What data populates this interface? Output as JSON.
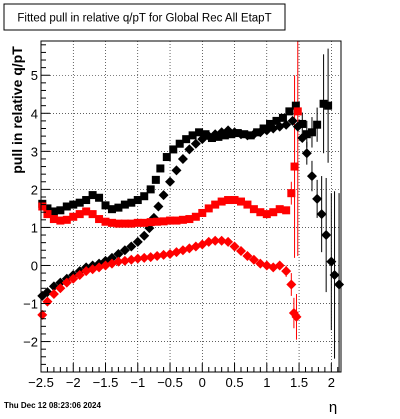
{
  "chart_data": {
    "type": "scatter",
    "title": "Fitted pull in relative q/pT for Global Rec All EtapT",
    "xlabel": "η",
    "ylabel": "pull in relative q/pT",
    "xlim": [
      -2.5,
      2.15
    ],
    "ylim": [
      -2.8,
      5.9
    ],
    "x_ticks": [
      -2.5,
      -2,
      -1.5,
      -1,
      -0.5,
      0,
      0.5,
      1,
      1.5,
      2
    ],
    "x_tick_labels": [
      "−2.5",
      "−2",
      "−1.5",
      "−1",
      "−0.5",
      "0",
      "0.5",
      "1",
      "1.5",
      "2"
    ],
    "y_ticks": [
      -2,
      -1,
      0,
      1,
      2,
      3,
      4,
      5
    ],
    "y_tick_labels": [
      "−2",
      "−1",
      "0",
      "1",
      "2",
      "3",
      "4",
      "5"
    ],
    "grid": true,
    "legend": "none",
    "timestamp": "Thu Dec 12 08:23:06 2024",
    "series": [
      {
        "color": "#000000",
        "marker": "square",
        "points": [
          [
            -2.48,
            1.62
          ],
          [
            -2.4,
            1.5
          ],
          [
            -2.3,
            1.42
          ],
          [
            -2.2,
            1.45
          ],
          [
            -2.1,
            1.55
          ],
          [
            -2.0,
            1.6
          ],
          [
            -1.9,
            1.65
          ],
          [
            -1.8,
            1.72
          ],
          [
            -1.7,
            1.85
          ],
          [
            -1.6,
            1.78
          ],
          [
            -1.5,
            1.58
          ],
          [
            -1.4,
            1.48
          ],
          [
            -1.3,
            1.52
          ],
          [
            -1.2,
            1.6
          ],
          [
            -1.1,
            1.65
          ],
          [
            -1.0,
            1.72
          ],
          [
            -0.9,
            1.82
          ],
          [
            -0.8,
            2.0
          ],
          [
            -0.72,
            2.25
          ],
          [
            -0.65,
            2.55
          ],
          [
            -0.55,
            2.85
          ],
          [
            -0.45,
            3.05
          ],
          [
            -0.35,
            3.2
          ],
          [
            -0.25,
            3.32
          ],
          [
            -0.15,
            3.42
          ],
          [
            -0.05,
            3.5
          ],
          [
            0.05,
            3.45
          ],
          [
            0.15,
            3.35
          ],
          [
            0.25,
            3.38
          ],
          [
            0.35,
            3.42
          ],
          [
            0.45,
            3.45
          ],
          [
            0.55,
            3.48
          ],
          [
            0.65,
            3.45
          ],
          [
            0.75,
            3.42
          ],
          [
            0.85,
            3.5
          ],
          [
            0.95,
            3.6
          ],
          [
            1.05,
            3.72
          ],
          [
            1.15,
            3.8
          ],
          [
            1.25,
            3.88
          ],
          [
            1.35,
            4.05
          ],
          [
            1.45,
            4.2
          ],
          [
            1.55,
            3.72
          ],
          [
            1.62,
            3.45
          ],
          [
            1.7,
            3.5
          ],
          [
            1.78,
            3.7
          ],
          [
            1.88,
            4.25
          ],
          [
            1.95,
            4.2
          ]
        ],
        "errors": [
          [
            1.55,
            0.3
          ],
          [
            1.62,
            0.35
          ],
          [
            1.7,
            0.4
          ],
          [
            1.78,
            0.45
          ],
          [
            1.88,
            1.3
          ],
          [
            1.95,
            1.5
          ]
        ]
      },
      {
        "color": "#000000",
        "marker": "diamond",
        "points": [
          [
            -2.48,
            -0.8
          ],
          [
            -2.4,
            -0.7
          ],
          [
            -2.3,
            -0.55
          ],
          [
            -2.2,
            -0.45
          ],
          [
            -2.1,
            -0.35
          ],
          [
            -2.0,
            -0.25
          ],
          [
            -1.9,
            -0.15
          ],
          [
            -1.8,
            -0.05
          ],
          [
            -1.7,
            0.0
          ],
          [
            -1.6,
            0.05
          ],
          [
            -1.5,
            0.12
          ],
          [
            -1.4,
            0.2
          ],
          [
            -1.3,
            0.3
          ],
          [
            -1.2,
            0.4
          ],
          [
            -1.1,
            0.5
          ],
          [
            -1.0,
            0.62
          ],
          [
            -0.9,
            0.78
          ],
          [
            -0.82,
            0.98
          ],
          [
            -0.75,
            1.25
          ],
          [
            -0.68,
            1.55
          ],
          [
            -0.6,
            1.85
          ],
          [
            -0.5,
            2.2
          ],
          [
            -0.4,
            2.5
          ],
          [
            -0.3,
            2.8
          ],
          [
            -0.2,
            3.05
          ],
          [
            -0.1,
            3.2
          ],
          [
            0.0,
            3.32
          ],
          [
            0.1,
            3.4
          ],
          [
            0.2,
            3.45
          ],
          [
            0.3,
            3.5
          ],
          [
            0.4,
            3.55
          ],
          [
            0.5,
            3.5
          ],
          [
            0.6,
            3.45
          ],
          [
            0.7,
            3.42
          ],
          [
            0.8,
            3.45
          ],
          [
            0.9,
            3.5
          ],
          [
            1.0,
            3.55
          ],
          [
            1.1,
            3.6
          ],
          [
            1.2,
            3.65
          ],
          [
            1.3,
            3.7
          ],
          [
            1.4,
            3.8
          ],
          [
            1.48,
            3.65
          ],
          [
            1.55,
            3.35
          ],
          [
            1.62,
            2.95
          ],
          [
            1.7,
            2.35
          ],
          [
            1.78,
            1.75
          ],
          [
            1.85,
            1.35
          ],
          [
            1.92,
            0.8
          ],
          [
            2.0,
            0.1
          ],
          [
            2.05,
            -0.25
          ],
          [
            2.12,
            -0.5
          ]
        ],
        "errors": [
          [
            1.62,
            0.3
          ],
          [
            1.7,
            0.4
          ],
          [
            1.78,
            0.5
          ],
          [
            1.85,
            1.0
          ],
          [
            1.92,
            1.5
          ],
          [
            2.0,
            1.8
          ],
          [
            2.05,
            2.2
          ],
          [
            2.12,
            2.4
          ]
        ]
      },
      {
        "color": "#ff0000",
        "marker": "square",
        "points": [
          [
            -2.48,
            1.55
          ],
          [
            -2.4,
            1.35
          ],
          [
            -2.3,
            1.22
          ],
          [
            -2.2,
            1.18
          ],
          [
            -2.1,
            1.2
          ],
          [
            -2.0,
            1.28
          ],
          [
            -1.9,
            1.35
          ],
          [
            -1.8,
            1.42
          ],
          [
            -1.7,
            1.35
          ],
          [
            -1.6,
            1.22
          ],
          [
            -1.5,
            1.15
          ],
          [
            -1.4,
            1.12
          ],
          [
            -1.3,
            1.1
          ],
          [
            -1.2,
            1.1
          ],
          [
            -1.1,
            1.1
          ],
          [
            -1.0,
            1.12
          ],
          [
            -0.9,
            1.12
          ],
          [
            -0.8,
            1.14
          ],
          [
            -0.7,
            1.15
          ],
          [
            -0.6,
            1.16
          ],
          [
            -0.5,
            1.18
          ],
          [
            -0.4,
            1.18
          ],
          [
            -0.3,
            1.2
          ],
          [
            -0.2,
            1.22
          ],
          [
            -0.1,
            1.28
          ],
          [
            0.0,
            1.38
          ],
          [
            0.1,
            1.5
          ],
          [
            0.2,
            1.6
          ],
          [
            0.3,
            1.68
          ],
          [
            0.4,
            1.72
          ],
          [
            0.5,
            1.72
          ],
          [
            0.6,
            1.68
          ],
          [
            0.7,
            1.6
          ],
          [
            0.8,
            1.48
          ],
          [
            0.9,
            1.4
          ],
          [
            1.0,
            1.35
          ],
          [
            1.1,
            1.4
          ],
          [
            1.2,
            1.48
          ],
          [
            1.3,
            1.45
          ],
          [
            1.38,
            1.9
          ],
          [
            1.43,
            2.6
          ],
          [
            1.48,
            4.05
          ]
        ],
        "errors": [
          [
            1.38,
            0.3
          ],
          [
            1.43,
            2.4
          ],
          [
            1.48,
            3.8
          ]
        ]
      },
      {
        "color": "#ff0000",
        "marker": "diamond",
        "points": [
          [
            -2.48,
            -1.3
          ],
          [
            -2.4,
            -0.95
          ],
          [
            -2.3,
            -0.75
          ],
          [
            -2.2,
            -0.6
          ],
          [
            -2.1,
            -0.45
          ],
          [
            -2.0,
            -0.35
          ],
          [
            -1.9,
            -0.25
          ],
          [
            -1.8,
            -0.15
          ],
          [
            -1.7,
            -0.1
          ],
          [
            -1.6,
            -0.05
          ],
          [
            -1.5,
            0.0
          ],
          [
            -1.4,
            0.05
          ],
          [
            -1.3,
            0.1
          ],
          [
            -1.2,
            0.12
          ],
          [
            -1.1,
            0.15
          ],
          [
            -1.0,
            0.18
          ],
          [
            -0.9,
            0.2
          ],
          [
            -0.8,
            0.22
          ],
          [
            -0.7,
            0.25
          ],
          [
            -0.6,
            0.28
          ],
          [
            -0.5,
            0.3
          ],
          [
            -0.4,
            0.35
          ],
          [
            -0.3,
            0.4
          ],
          [
            -0.2,
            0.45
          ],
          [
            -0.1,
            0.5
          ],
          [
            0.0,
            0.55
          ],
          [
            0.1,
            0.62
          ],
          [
            0.2,
            0.65
          ],
          [
            0.3,
            0.65
          ],
          [
            0.4,
            0.62
          ],
          [
            0.5,
            0.5
          ],
          [
            0.6,
            0.38
          ],
          [
            0.7,
            0.25
          ],
          [
            0.8,
            0.15
          ],
          [
            0.9,
            0.05
          ],
          [
            1.0,
            0.0
          ],
          [
            1.1,
            -0.05
          ],
          [
            1.2,
            0.0
          ],
          [
            1.3,
            -0.15
          ],
          [
            1.38,
            -0.5
          ],
          [
            1.42,
            -1.25
          ],
          [
            1.46,
            -1.35
          ]
        ],
        "errors": [
          [
            1.3,
            0.15
          ],
          [
            1.38,
            0.3
          ],
          [
            1.42,
            0.4
          ],
          [
            1.46,
            0.6
          ]
        ]
      }
    ]
  }
}
